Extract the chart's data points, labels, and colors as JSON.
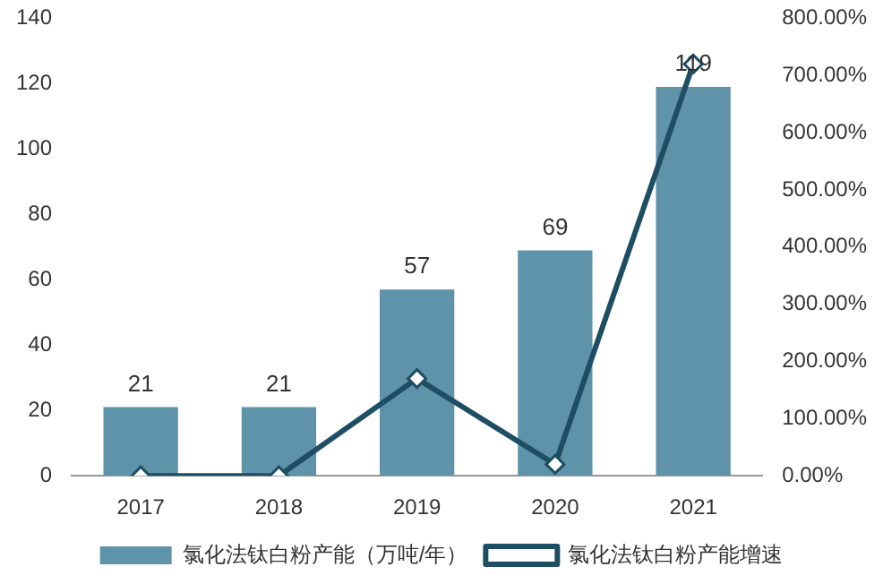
{
  "chart_data": {
    "type": "bar",
    "categories": [
      "2017",
      "2018",
      "2019",
      "2020",
      "2021"
    ],
    "series": [
      {
        "name": "氯化法钛白粉产能（万吨/年）",
        "color": "#5f93a9",
        "values": [
          21,
          21,
          57,
          69,
          119
        ],
        "value_labels": [
          "21",
          "21",
          "57",
          "69",
          "119"
        ]
      },
      {
        "name": "氯化法钛白粉产能增速",
        "type": "line",
        "axis": "y2",
        "color": "#1d4e63",
        "values": [
          0,
          0,
          170,
          20,
          720
        ],
        "marker": "diamond"
      }
    ],
    "ylim": [
      0,
      140
    ],
    "yticks": [
      0,
      20,
      40,
      60,
      80,
      100,
      120,
      140
    ],
    "y2lim": [
      0,
      800
    ],
    "y2ticks": [
      {
        "value": 0,
        "label": "0.00%"
      },
      {
        "value": 100,
        "label": "100.00%"
      },
      {
        "value": 200,
        "label": "200.00%"
      },
      {
        "value": 300,
        "label": "300.00%"
      },
      {
        "value": 400,
        "label": "400.00%"
      },
      {
        "value": 500,
        "label": "500.00%"
      },
      {
        "value": 600,
        "label": "600.00%"
      },
      {
        "value": 700,
        "label": "700.00%"
      },
      {
        "value": 800,
        "label": "800.00%"
      }
    ],
    "grid": false,
    "legend": "bottom"
  }
}
